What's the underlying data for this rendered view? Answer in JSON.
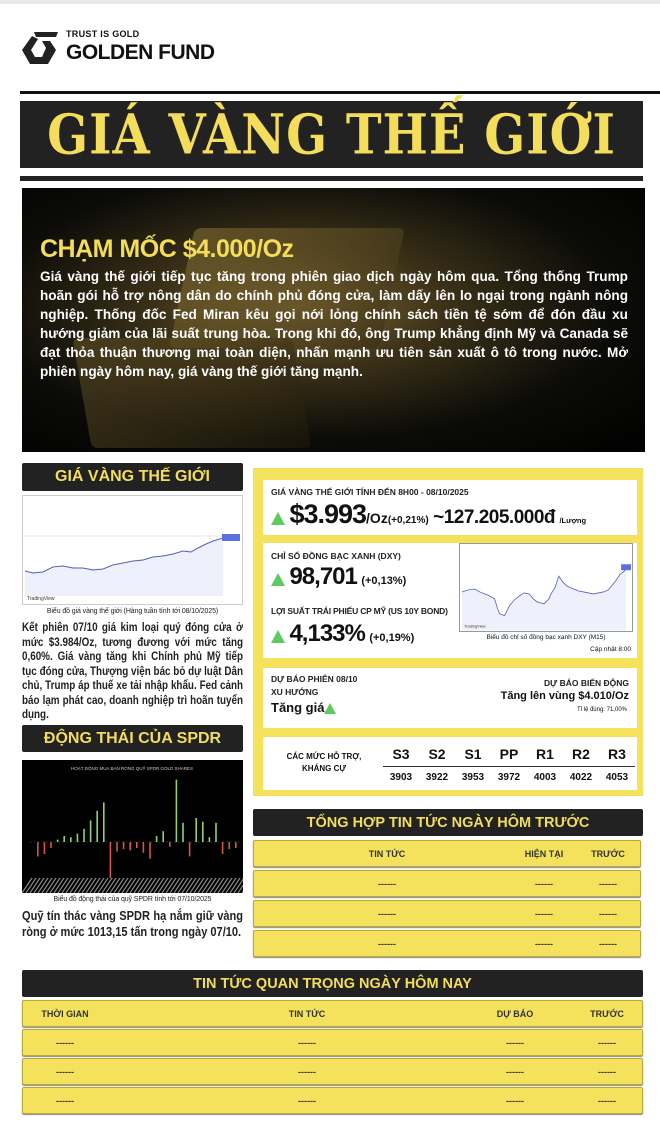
{
  "brand": {
    "tagline": "TRUST IS GOLD",
    "name": "GOLDEN FUND"
  },
  "title": "GIÁ VÀNG THẾ GIỚI",
  "hero": {
    "heading": "CHẠM MỐC $4.000/Oz",
    "text": "Giá vàng thế giới tiếp tục tăng trong phiên giao dịch ngày hôm qua. Tổng thống Trump hoãn gói hỗ trợ nông dân do chính phủ đóng cửa, làm dấy lên lo ngại trong ngành nông nghiệp. Thống đốc Fed Miran kêu gọi nới lỏng chính sách tiền tệ sớm để đón đầu xu hướng giảm của lãi suất trung hòa. Trong khi đó, ông Trump khẳng định Mỹ và Canada sẽ đạt thỏa thuận thương mại toàn diện, nhấn mạnh ưu tiên sản xuất ô tô trong nước. Mở phiên ngày hôm nay, giá vàng thế giới tăng mạnh."
  },
  "left": {
    "gold_header": "GIÁ VÀNG THẾ GIỚI",
    "gold_chart_brand": "TradingView",
    "gold_caption": "Biểu đồ giá vàng thế giới (Hàng tuần tính tới 08/10/2025)",
    "gold_text": "Kết phiên 07/10 giá kim loại quý đóng cửa ở mức $3.984/Oz, tương đương với mức tăng 0,60%. Giá vàng tăng khi Chính phủ Mỹ tiếp tục đóng cửa, Thượng viện bác bỏ dự luật Dân chủ, Trump áp thuế xe tải nhập khẩu. Fed cảnh báo lạm phát cao, doanh nghiệp trì hoãn tuyển dụng.",
    "spdr_header": "ĐỘNG THÁI CỦA SPDR",
    "spdr_chart_title": "HOẠT ĐỘNG MUA BÁN RÒNG QUỸ SPDR GOLD SHARES",
    "spdr_caption": "Biểu đồ động thái của quỹ SPDR tính tới 07/10/2025",
    "spdr_text": "Quỹ tín thác vàng SPDR hạ nắm giữ vàng ròng ở mức 1013,15 tấn trong ngày 07/10."
  },
  "right": {
    "price_label": "GIÁ VÀNG THẾ GIỚI TÍNH ĐẾN 8H00 - 08/10/2025",
    "price": "$3.993",
    "price_unit": "/Oz",
    "price_change": "(+0,21%)",
    "price_vnd": "~127.205.000đ",
    "price_vnd_unit": "/Lượng",
    "dxy_label": "CHỈ SỐ ĐỒNG BẠC XANH (DXY)",
    "dxy": "98,701",
    "dxy_change": "(+0,13%)",
    "bond_label": "LỢI SUẤT TRÁI PHIẾU CP MỸ (US 10Y BOND)",
    "bond": "4,133%",
    "bond_change": "(+0,19%)",
    "dxy_chart_brand": "TradingView",
    "dxy_caption": "Biểu đồ chỉ số đồng bạc xanh DXY (M15)",
    "dxy_updated": "Cập nhật 8:00",
    "forecast_session": "DỰ BÁO PHIÊN 08/10",
    "trend_label": "XU HƯỚNG",
    "trend": "Tăng giá",
    "volatility_label": "DỰ BÁO BIẾN ĐỘNG",
    "volatility": "Tăng lên vùng $4.010/Oz",
    "accuracy": "Tỉ lệ đúng: 71,00%",
    "sr_label": "CÁC MỨC HỖ TRỢ, KHÁNG CỰ",
    "sr_headers": [
      "S3",
      "S2",
      "S1",
      "PP",
      "R1",
      "R2",
      "R3"
    ],
    "sr_values": [
      "3903",
      "3922",
      "3953",
      "3972",
      "4003",
      "4022",
      "4053"
    ],
    "up_color": "#5ecb5e"
  },
  "prev_news": {
    "header": "TỔNG HỢP TIN TỨC NGÀY HÔM TRƯỚC",
    "columns": [
      "TIN TỨC",
      "HIỆN TẠI",
      "TRƯỚC"
    ],
    "rows": [
      [
        "------",
        "------",
        "------"
      ],
      [
        "------",
        "------",
        "------"
      ],
      [
        "------",
        "------",
        "------"
      ]
    ]
  },
  "today_news": {
    "header": "TIN TỨC QUAN TRỌNG NGÀY HÔM NAY",
    "columns": [
      "THỜI GIAN",
      "TIN TỨC",
      "DỰ BÁO",
      "TRƯỚC"
    ],
    "rows": [
      [
        "------",
        "------",
        "------",
        "------"
      ],
      [
        "------",
        "------",
        "------",
        "------"
      ],
      [
        "------",
        "------",
        "------",
        "------"
      ]
    ]
  },
  "colors": {
    "accent_yellow": "#f5e25c",
    "title_yellow": "#f3dd5a",
    "dark": "#222222",
    "up_green": "#5ecb5e",
    "down_red": "#d9534f"
  }
}
